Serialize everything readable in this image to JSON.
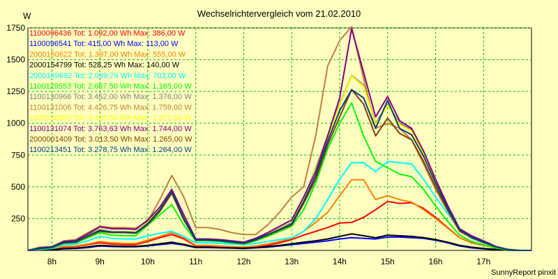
{
  "chart_data": {
    "type": "line",
    "title": "Wechselrichtervergleich vom 21.02.2010",
    "ylabel": "W",
    "xlabel": "",
    "footer": "SunnyReport pinxit",
    "xlim": [
      7.5,
      18.0
    ],
    "ylim": [
      0,
      1750
    ],
    "yticks": [
      0,
      250,
      500,
      750,
      1000,
      1250,
      1500,
      1750
    ],
    "yticklabels": [
      "",
      "250",
      "500",
      "750",
      "1000",
      "1250",
      "1500",
      "1750"
    ],
    "xticks": [
      8,
      9,
      10,
      11,
      12,
      13,
      14,
      15,
      16,
      17
    ],
    "xticklabels": [
      "8h",
      "9h",
      "10h",
      "11h",
      "12h",
      "13h",
      "14h",
      "15h",
      "16h",
      "17h"
    ],
    "grid": true,
    "legend_position": "top-left",
    "x": [
      7.5,
      7.75,
      8.0,
      8.25,
      8.5,
      8.75,
      9.0,
      9.25,
      9.5,
      9.75,
      10.0,
      10.25,
      10.5,
      10.75,
      11.0,
      11.25,
      11.5,
      11.75,
      12.0,
      12.25,
      12.5,
      12.75,
      13.0,
      13.25,
      13.5,
      13.75,
      14.0,
      14.25,
      14.5,
      14.75,
      15.0,
      15.25,
      15.5,
      15.75,
      16.0,
      16.25,
      16.5,
      16.75,
      17.0,
      17.25,
      17.5,
      17.75,
      18.0
    ],
    "series": [
      {
        "legend": "1100096436 Tot: 1.092,00 Wh Max: 386,00 W",
        "color": "#ff0000",
        "values": [
          0,
          5,
          8,
          28,
          30,
          45,
          60,
          50,
          45,
          45,
          70,
          100,
          125,
          90,
          35,
          35,
          30,
          25,
          20,
          30,
          40,
          60,
          85,
          120,
          150,
          180,
          215,
          220,
          260,
          320,
          385,
          370,
          375,
          330,
          260,
          180,
          100,
          60,
          40,
          20,
          5,
          0,
          0
        ]
      },
      {
        "legend": "1100096541 Tot: 415,00 Wh Max: 113,00 W",
        "color": "#0000ff",
        "values": [
          0,
          3,
          5,
          12,
          15,
          22,
          35,
          30,
          28,
          28,
          35,
          45,
          55,
          42,
          22,
          22,
          20,
          18,
          15,
          20,
          25,
          35,
          45,
          55,
          65,
          75,
          90,
          100,
          95,
          90,
          105,
          105,
          100,
          95,
          80,
          60,
          35,
          20,
          12,
          6,
          2,
          0,
          0
        ]
      },
      {
        "legend": "2000150622 Tot: 1.397,00 Wh Max: 555,00 W",
        "color": "#ff8000",
        "values": [
          0,
          5,
          10,
          32,
          35,
          50,
          70,
          60,
          55,
          55,
          80,
          110,
          140,
          100,
          40,
          40,
          35,
          30,
          25,
          35,
          50,
          70,
          95,
          150,
          220,
          300,
          430,
          555,
          555,
          400,
          430,
          400,
          380,
          320,
          250,
          175,
          100,
          60,
          40,
          20,
          5,
          0,
          0
        ]
      },
      {
        "legend": "2000154799 Tot: 528,25 Wh Max: 140,00 W",
        "color": "#000000",
        "values": [
          0,
          3,
          5,
          15,
          18,
          28,
          40,
          35,
          32,
          32,
          40,
          52,
          65,
          48,
          25,
          25,
          22,
          20,
          18,
          22,
          30,
          40,
          52,
          65,
          75,
          90,
          110,
          130,
          115,
          100,
          120,
          115,
          110,
          100,
          85,
          65,
          40,
          25,
          15,
          8,
          2,
          0,
          0
        ]
      },
      {
        "legend": "2000149692 Tot: 2.039,75 Wh Max: 703,00 W",
        "color": "#00ffff",
        "values": [
          0,
          8,
          15,
          45,
          50,
          75,
          110,
          95,
          90,
          90,
          115,
          135,
          150,
          110,
          60,
          60,
          55,
          50,
          45,
          55,
          70,
          85,
          100,
          150,
          250,
          400,
          560,
          690,
          690,
          620,
          700,
          690,
          680,
          560,
          420,
          290,
          160,
          95,
          60,
          30,
          8,
          0,
          0
        ]
      },
      {
        "legend": "1100129553 Tot: 2.687,50 Wh Max: 1.165,00 W",
        "color": "#00ff00",
        "values": [
          0,
          12,
          20,
          55,
          60,
          100,
          140,
          120,
          115,
          115,
          200,
          280,
          360,
          200,
          75,
          75,
          70,
          60,
          50,
          75,
          110,
          150,
          190,
          320,
          530,
          800,
          1000,
          1160,
          900,
          700,
          650,
          600,
          580,
          480,
          350,
          230,
          120,
          70,
          45,
          20,
          5,
          0,
          0
        ]
      },
      {
        "legend": "1100130966 Tot: 3.452,00 Wh Max: 1.376,00 W",
        "color": "#808080",
        "values": [
          0,
          18,
          25,
          65,
          70,
          120,
          165,
          150,
          150,
          145,
          220,
          330,
          470,
          260,
          85,
          85,
          80,
          70,
          60,
          90,
          130,
          175,
          220,
          400,
          650,
          900,
          1150,
          1376,
          1300,
          1000,
          1150,
          1000,
          950,
          770,
          550,
          350,
          165,
          110,
          70,
          30,
          8,
          0,
          0
        ]
      },
      {
        "legend": "1100131006 Tot: 4.426,75 Wh Max: 1.759,00 W",
        "color": "#c08040",
        "values": [
          0,
          25,
          30,
          75,
          85,
          140,
          190,
          180,
          180,
          175,
          230,
          400,
          590,
          420,
          180,
          180,
          165,
          140,
          125,
          125,
          200,
          300,
          420,
          500,
          900,
          1450,
          1650,
          1759,
          1350,
          960,
          1000,
          960,
          870,
          680,
          480,
          310,
          150,
          100,
          65,
          30,
          8,
          0,
          0
        ]
      },
      {
        "legend": "1100130955 Tot: 3.415,50 Wh Max: 1.371,00 W",
        "color": "#ffff00",
        "values": [
          0,
          18,
          25,
          65,
          70,
          118,
          160,
          148,
          148,
          143,
          218,
          325,
          465,
          255,
          84,
          84,
          78,
          68,
          58,
          88,
          128,
          170,
          215,
          395,
          640,
          890,
          1140,
          1371,
          1290,
          990,
          1140,
          990,
          940,
          760,
          545,
          345,
          162,
          108,
          68,
          30,
          8,
          0,
          0
        ]
      },
      {
        "legend": "1100131074 Tot: 3.763,63 Wh Max: 1.744,00 W",
        "color": "#800080",
        "values": [
          0,
          20,
          28,
          70,
          78,
          130,
          185,
          170,
          170,
          165,
          240,
          340,
          480,
          280,
          90,
          90,
          85,
          75,
          65,
          95,
          140,
          190,
          240,
          420,
          620,
          900,
          1200,
          1744,
          1400,
          1050,
          1210,
          1020,
          960,
          780,
          560,
          355,
          170,
          115,
          75,
          32,
          8,
          0,
          0
        ]
      },
      {
        "legend": "2000001409 Tot: 3.013,50 Wh Max: 1.265,00 W",
        "color": "#804000",
        "values": [
          0,
          14,
          22,
          60,
          65,
          110,
          150,
          140,
          140,
          135,
          205,
          305,
          450,
          240,
          80,
          80,
          75,
          65,
          55,
          82,
          120,
          160,
          200,
          370,
          560,
          830,
          1050,
          1265,
          1150,
          900,
          1040,
          920,
          870,
          700,
          500,
          320,
          155,
          100,
          62,
          28,
          7,
          0,
          0
        ]
      },
      {
        "legend": "1100213451 Tot: 3.278,75 Wh Max: 1.264,00 W",
        "color": "#004080",
        "values": [
          0,
          16,
          24,
          62,
          68,
          115,
          158,
          145,
          145,
          140,
          212,
          318,
          460,
          250,
          82,
          82,
          77,
          67,
          57,
          86,
          125,
          165,
          210,
          385,
          590,
          860,
          1100,
          1264,
          1200,
          960,
          1180,
          960,
          910,
          740,
          530,
          335,
          160,
          105,
          65,
          29,
          7,
          0,
          0
        ]
      }
    ]
  }
}
